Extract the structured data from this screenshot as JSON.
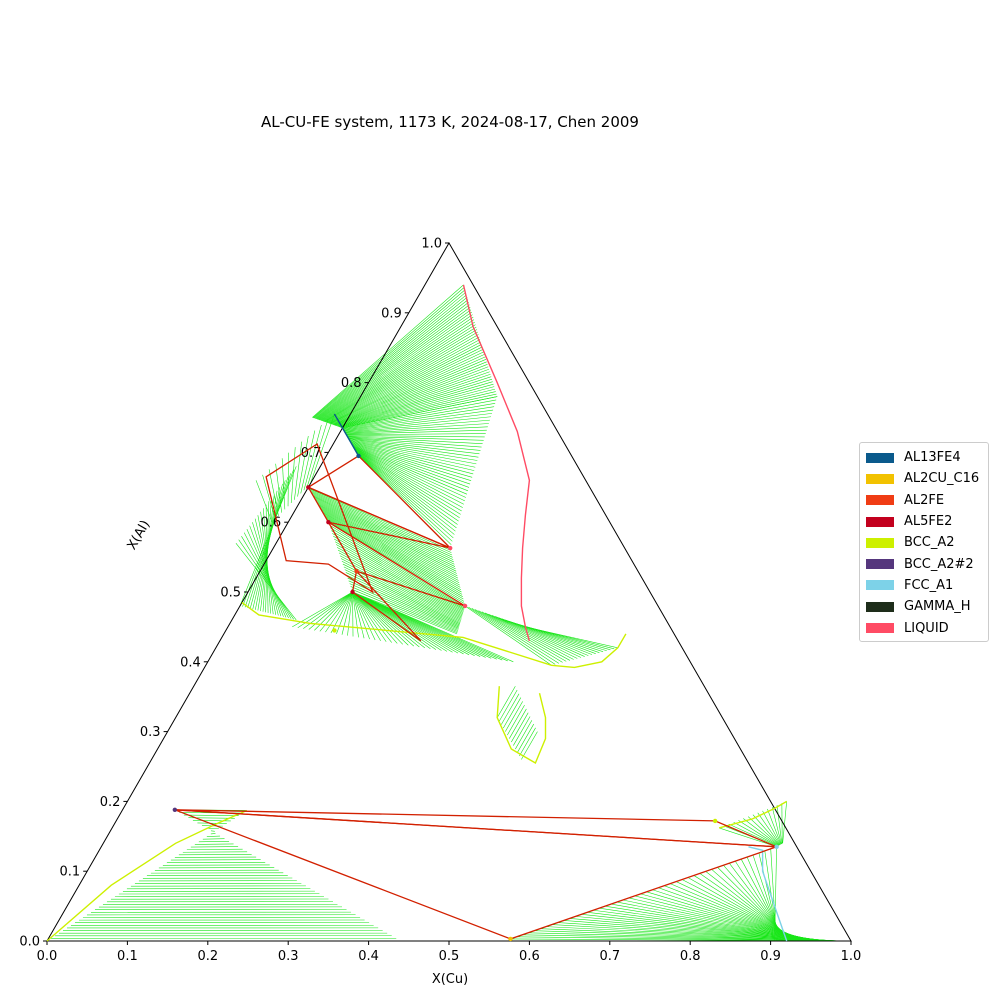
{
  "chart_data": {
    "type": "ternary-phase-diagram",
    "title": "AL-CU-FE system, 1173 K, 2024-08-17, Chen 2009",
    "xlabel": "X(Cu)",
    "ylabel": "X(Al)",
    "xlim": [
      0,
      1
    ],
    "ylim": [
      0,
      1
    ],
    "x_ticks": [
      "0.0",
      "0.1",
      "0.2",
      "0.3",
      "0.4",
      "0.5",
      "0.6",
      "0.7",
      "0.8",
      "0.9",
      "1.0"
    ],
    "y_ticks": [
      "0.0",
      "0.1",
      "0.2",
      "0.3",
      "0.4",
      "0.5",
      "0.6",
      "0.7",
      "0.8",
      "0.9",
      "1.0"
    ],
    "grid": false,
    "legend_position": "right",
    "legend": [
      {
        "name": "AL13FE4",
        "color": "#0a5a8c"
      },
      {
        "name": "AL2CU_C16",
        "color": "#f2c200"
      },
      {
        "name": "AL2FE",
        "color": "#f03c14"
      },
      {
        "name": "AL5FE2",
        "color": "#c3001e"
      },
      {
        "name": "BCC_A2",
        "color": "#cdf000"
      },
      {
        "name": "BCC_A2#2",
        "color": "#55367d"
      },
      {
        "name": "FCC_A1",
        "color": "#7dd2e8"
      },
      {
        "name": "GAMMA_H",
        "color": "#1e2d1a"
      },
      {
        "name": "LIQUID",
        "color": "#ff4b64"
      }
    ],
    "phase_boundaries": [
      {
        "phase": "LIQUID",
        "color": "#ff4b64",
        "points": [
          [
            0.048,
            0.94
          ],
          [
            0.09,
            0.88
          ],
          [
            0.16,
            0.8
          ],
          [
            0.22,
            0.73
          ],
          [
            0.27,
            0.66
          ],
          [
            0.29,
            0.61
          ],
          [
            0.31,
            0.563
          ],
          [
            0.33,
            0.52
          ],
          [
            0.35,
            0.48
          ],
          [
            0.37,
            0.45
          ],
          [
            0.385,
            0.43
          ]
        ]
      },
      {
        "phase": "AL13FE4",
        "color": "#0a5a8c",
        "points": [
          [
            -0.02,
            0.755
          ],
          [
            0.02,
            0.715
          ],
          [
            0.04,
            0.695
          ]
        ]
      },
      {
        "phase": "BCC_A2",
        "color": "#cdf000",
        "points": [
          [
            0.0,
            0.485
          ],
          [
            0.03,
            0.467
          ],
          [
            0.1,
            0.455
          ],
          [
            0.2,
            0.445
          ],
          [
            0.3,
            0.435
          ],
          [
            0.43,
            0.395
          ],
          [
            0.46,
            0.392
          ],
          [
            0.49,
            0.4
          ],
          [
            0.5,
            0.42
          ],
          [
            0.5,
            0.44
          ]
        ]
      },
      {
        "phase": "BCC_A2",
        "color": "#cdf000",
        "points": [
          [
            0.38,
            0.365
          ],
          [
            0.4,
            0.32
          ],
          [
            0.44,
            0.275
          ],
          [
            0.48,
            0.255
          ],
          [
            0.475,
            0.29
          ],
          [
            0.46,
            0.32
          ],
          [
            0.435,
            0.355
          ]
        ]
      },
      {
        "phase": "BCC_A2",
        "color": "#cdf000",
        "points": [
          [
            0.0,
            0.0
          ],
          [
            0.04,
            0.08
          ],
          [
            0.09,
            0.14
          ],
          [
            0.13,
            0.17
          ],
          [
            0.155,
            0.187
          ]
        ]
      },
      {
        "phase": "BCC_A2",
        "color": "#cdf000",
        "points": [
          [
            0.755,
            0.162
          ],
          [
            0.79,
            0.175
          ],
          [
            0.81,
            0.19
          ],
          [
            0.82,
            0.2
          ]
        ]
      },
      {
        "phase": "FCC_A1",
        "color": "#7dd2e8",
        "points": [
          [
            0.805,
            0.135
          ],
          [
            0.825,
            0.13
          ],
          [
            0.84,
            0.1
          ],
          [
            0.88,
            0.05
          ],
          [
            0.92,
            0.0
          ]
        ]
      }
    ],
    "three_phase_triangles": [
      {
        "phases": [
          "AL13FE4",
          "AL5FE2",
          "LIQUID"
        ],
        "points": [
          [
            0.04,
            0.695
          ],
          [
            0.0,
            0.65
          ],
          [
            0.22,
            0.563
          ]
        ]
      },
      {
        "phases": [
          "AL5FE2",
          "AL2FE",
          "LIQUID"
        ],
        "points": [
          [
            0.0,
            0.65
          ],
          [
            0.05,
            0.6
          ],
          [
            0.22,
            0.563
          ]
        ]
      },
      {
        "phases": [
          "AL2FE",
          "BCC_A2",
          "LIQUID"
        ],
        "points": [
          [
            0.05,
            0.6
          ],
          [
            0.12,
            0.53
          ],
          [
            0.28,
            0.48
          ]
        ]
      },
      {
        "phases": [
          "BCC_A2",
          "BCC_A2#2",
          "LIQUID"
        ],
        "points": [
          [
            0.12,
            0.53
          ],
          [
            0.13,
            0.5
          ],
          [
            0.25,
            0.43
          ]
        ]
      },
      {
        "phases": [
          "AL5FE2",
          "AL2FE",
          "BCC_A2"
        ],
        "points": [
          [
            -0.02,
            0.712
          ],
          [
            -0.06,
            0.665
          ],
          [
            0.025,
            0.545
          ],
          [
            0.08,
            0.54
          ],
          [
            0.155,
            0.5
          ]
        ]
      },
      {
        "phases": [
          "BCC_A2",
          "GAMMA_H",
          "FCC_A1"
        ],
        "points": [
          [
            0.065,
            0.188
          ],
          [
            0.745,
            0.172
          ],
          [
            0.84,
            0.135
          ]
        ]
      },
      {
        "phases": [
          "BCC_A2",
          "GAMMA_H",
          "FCC_A1"
        ],
        "points": [
          [
            0.065,
            0.188
          ],
          [
            0.575,
            0.003
          ],
          [
            0.84,
            0.135
          ]
        ]
      }
    ],
    "invariant_points": [
      {
        "label": "AL13FE4",
        "x": 0.04,
        "y": 0.695,
        "color": "#0a5a8c"
      },
      {
        "label": "AL5FE2",
        "x": 0.0,
        "y": 0.65,
        "color": "#c3001e"
      },
      {
        "label": "AL2FE",
        "x": 0.05,
        "y": 0.6,
        "color": "#c3001e"
      },
      {
        "label": "LIQUID",
        "x": 0.22,
        "y": 0.563,
        "color": "#ff4b64"
      },
      {
        "label": "LIQUID",
        "x": 0.28,
        "y": 0.48,
        "color": "#ff4b64"
      },
      {
        "label": "AL2FE",
        "x": 0.12,
        "y": 0.53,
        "color": "#f03c14"
      },
      {
        "label": "BCC_A2",
        "x": 0.13,
        "y": 0.5,
        "color": "#c3001e"
      },
      {
        "label": "BCC_A2",
        "x": 0.135,
        "y": 0.445,
        "color": "#cdf000"
      },
      {
        "label": "BCC_A2#2",
        "x": 0.065,
        "y": 0.188,
        "color": "#55367d"
      },
      {
        "label": "AL2CU_C16",
        "x": 0.575,
        "y": 0.003,
        "color": "#f2c200"
      },
      {
        "label": "BCC_A2",
        "x": 0.745,
        "y": 0.172,
        "color": "#cdf000"
      },
      {
        "label": "FCC_A1",
        "x": 0.84,
        "y": 0.135,
        "color": "#7dd2e8"
      }
    ]
  }
}
